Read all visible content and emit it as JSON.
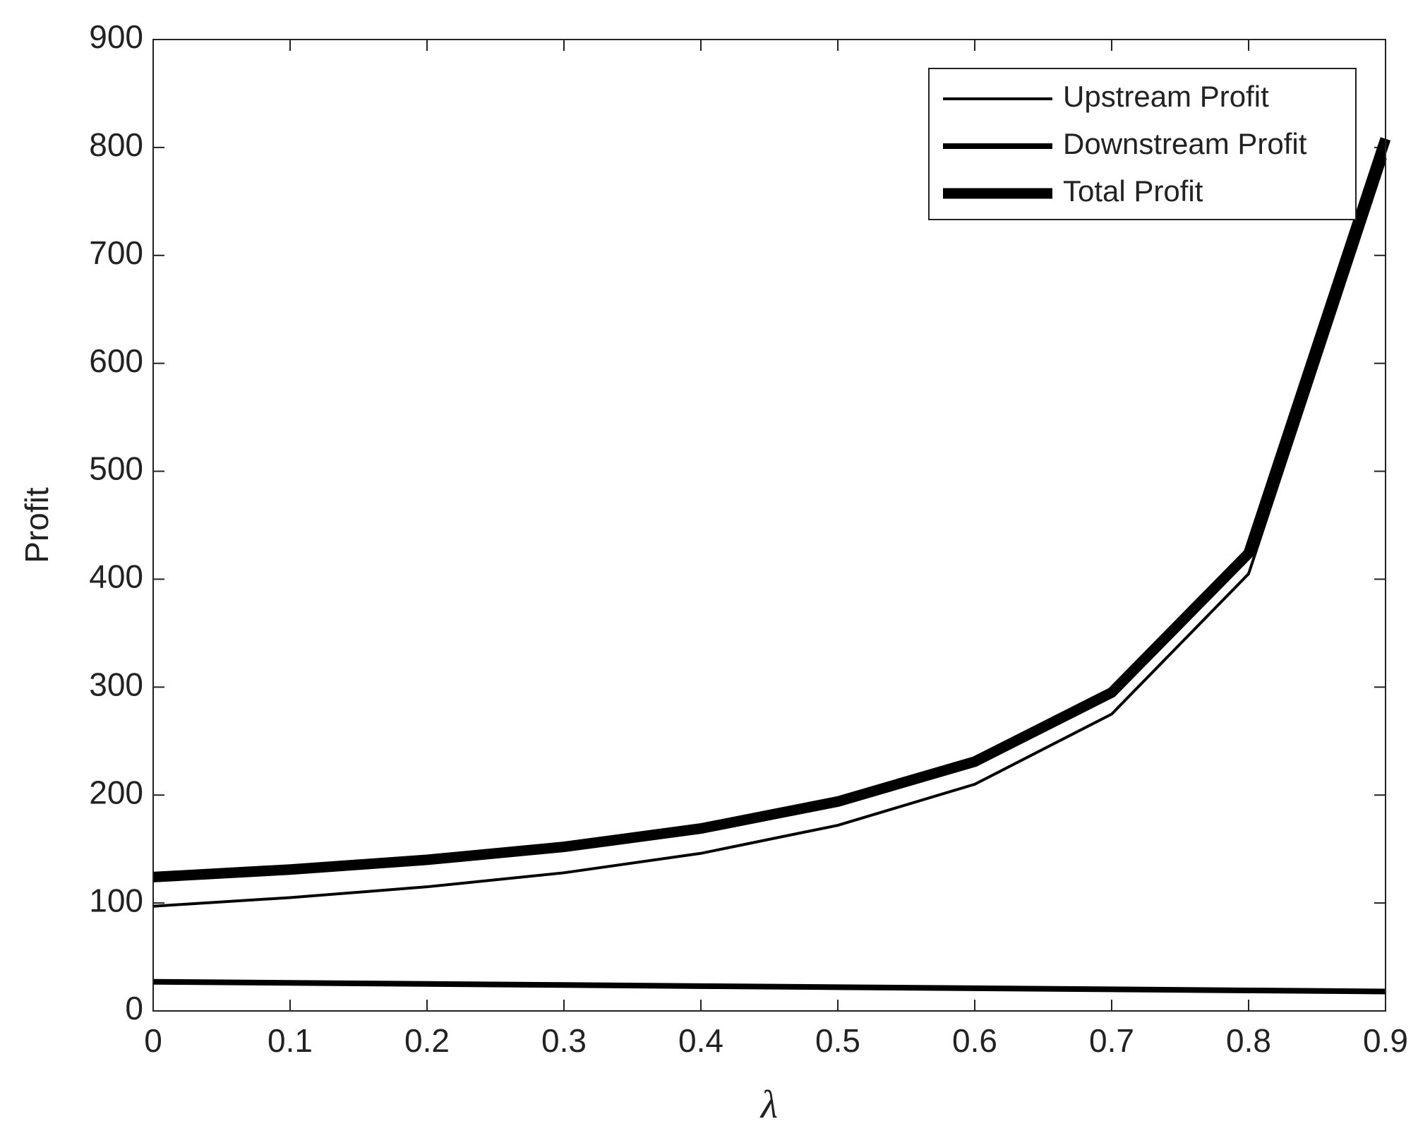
{
  "chart_data": {
    "type": "line",
    "xlabel": "λ",
    "ylabel": "Profit",
    "x": [
      0,
      0.1,
      0.2,
      0.3,
      0.4,
      0.5,
      0.6,
      0.7,
      0.8,
      0.9
    ],
    "series": [
      {
        "name": "Upstream Profit",
        "color": "#000000",
        "values": [
          97,
          105,
          115,
          128,
          146,
          172,
          210,
          275,
          405,
          790
        ]
      },
      {
        "name": "Downstream Profit",
        "color": "#000000",
        "values": [
          27,
          26,
          25,
          24,
          23,
          22,
          21,
          20,
          19,
          18
        ]
      },
      {
        "name": "Total Profit",
        "color": "#000000",
        "values": [
          124,
          131,
          140,
          152,
          169,
          194,
          231,
          295,
          424,
          808
        ]
      }
    ],
    "xlim": [
      0,
      0.9
    ],
    "xticks": [
      0,
      0.1,
      0.2,
      0.3,
      0.4,
      0.5,
      0.6,
      0.7,
      0.8,
      0.9
    ],
    "ylim": [
      0,
      900
    ],
    "yticks": [
      0,
      100,
      200,
      300,
      400,
      500,
      600,
      700,
      800,
      900
    ],
    "grid": false,
    "legend": "upper right"
  }
}
